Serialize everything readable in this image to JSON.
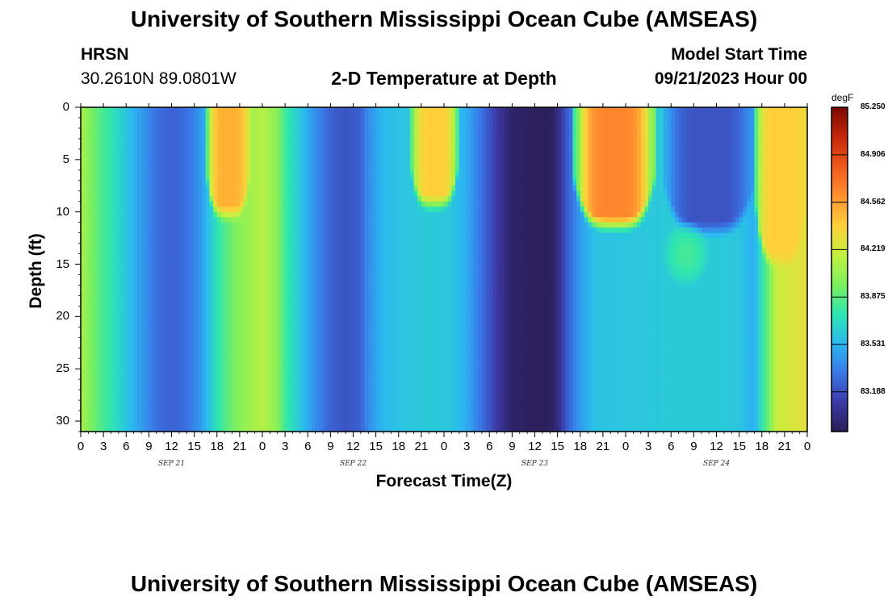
{
  "header": {
    "title": "University of Southern Mississippi Ocean Cube (AMSEAS)",
    "station": "HRSN",
    "coords": "30.2610N  89.0801W",
    "plot_title": "2-D Temperature at Depth",
    "model_label": "Model Start Time",
    "model_time": "09/21/2023 Hour 00"
  },
  "footer": {
    "title": "University of Southern Mississippi Ocean Cube (AMSEAS)"
  },
  "chart_data": {
    "type": "heatmap",
    "title": "2-D Temperature at Depth",
    "xlabel": "Forecast Time(Z)",
    "ylabel": "Depth (ft)",
    "x_range_hours": [
      0,
      96
    ],
    "x_tick_labels": [
      "0",
      "3",
      "6",
      "9",
      "12",
      "15",
      "18",
      "21",
      "0",
      "3",
      "6",
      "9",
      "12",
      "15",
      "18",
      "21",
      "0",
      "3",
      "6",
      "9",
      "12",
      "15",
      "18",
      "21",
      "0",
      "3",
      "6",
      "9",
      "12",
      "15",
      "18",
      "21",
      "0"
    ],
    "day_labels": [
      {
        "hour": 12,
        "label": "SEP 21"
      },
      {
        "hour": 36,
        "label": "SEP 22"
      },
      {
        "hour": 60,
        "label": "SEP 23"
      },
      {
        "hour": 84,
        "label": "SEP 24"
      }
    ],
    "ylim": [
      0,
      31
    ],
    "y_ticks": [
      0,
      5,
      10,
      15,
      20,
      25,
      30
    ],
    "colorbar": {
      "unit": "degF",
      "min": 82.9,
      "max": 85.25,
      "tick_labels": [
        "85.250",
        "84.906",
        "84.562",
        "84.219",
        "83.875",
        "83.531",
        "83.188"
      ],
      "colors": [
        "#2a1d55",
        "#3d3aa8",
        "#3a78e8",
        "#2bb9f0",
        "#2ee6b0",
        "#7df05c",
        "#c4f040",
        "#ffd03a",
        "#ff9030",
        "#ef5a1c",
        "#c4260a",
        "#7a0a03"
      ]
    },
    "bottom_profile_degF": [
      {
        "h": 0,
        "v": 84.1
      },
      {
        "h": 2,
        "v": 83.9
      },
      {
        "h": 4,
        "v": 83.75
      },
      {
        "h": 6,
        "v": 83.6
      },
      {
        "h": 8,
        "v": 83.45
      },
      {
        "h": 10,
        "v": 83.3
      },
      {
        "h": 12,
        "v": 83.25
      },
      {
        "h": 14,
        "v": 83.3
      },
      {
        "h": 16,
        "v": 83.45
      },
      {
        "h": 17,
        "v": 83.6
      },
      {
        "h": 19,
        "v": 83.85
      },
      {
        "h": 21,
        "v": 84.0
      },
      {
        "h": 23,
        "v": 84.1
      },
      {
        "h": 24,
        "v": 84.15
      },
      {
        "h": 26,
        "v": 84.0
      },
      {
        "h": 27,
        "v": 83.8
      },
      {
        "h": 29,
        "v": 83.6
      },
      {
        "h": 31,
        "v": 83.4
      },
      {
        "h": 33,
        "v": 83.25
      },
      {
        "h": 35,
        "v": 83.2
      },
      {
        "h": 37,
        "v": 83.25
      },
      {
        "h": 38,
        "v": 83.4
      },
      {
        "h": 40,
        "v": 83.55
      },
      {
        "h": 43,
        "v": 83.6
      },
      {
        "h": 46,
        "v": 83.62
      },
      {
        "h": 49,
        "v": 83.6
      },
      {
        "h": 51,
        "v": 83.5
      },
      {
        "h": 53,
        "v": 83.3
      },
      {
        "h": 55,
        "v": 83.1
      },
      {
        "h": 57,
        "v": 82.95
      },
      {
        "h": 60,
        "v": 82.92
      },
      {
        "h": 62,
        "v": 82.92
      },
      {
        "h": 63,
        "v": 83.0
      },
      {
        "h": 64,
        "v": 83.2
      },
      {
        "h": 66,
        "v": 83.45
      },
      {
        "h": 68,
        "v": 83.58
      },
      {
        "h": 72,
        "v": 83.6
      },
      {
        "h": 78,
        "v": 83.62
      },
      {
        "h": 84,
        "v": 83.62
      },
      {
        "h": 87,
        "v": 83.6
      },
      {
        "h": 89,
        "v": 83.5
      },
      {
        "h": 90,
        "v": 83.75
      },
      {
        "h": 91,
        "v": 83.95
      },
      {
        "h": 92,
        "v": 84.2
      },
      {
        "h": 96,
        "v": 84.3
      }
    ],
    "surface_warm_patches": [
      {
        "start_hour": 16.5,
        "end_hour": 22.5,
        "bottom_ft": 9.5,
        "peak_degF": 84.5
      },
      {
        "start_hour": 43.5,
        "end_hour": 50.0,
        "bottom_ft": 8.5,
        "peak_degF": 84.4
      },
      {
        "start_hour": 65.0,
        "end_hour": 76.0,
        "bottom_ft": 10.5,
        "peak_degF": 84.65
      },
      {
        "start_hour": 89.0,
        "end_hour": 96.0,
        "bottom_ft": 14.0,
        "peak_degF": 84.4
      }
    ],
    "surface_cool_patch": {
      "start_hour": 77.0,
      "end_hour": 89.0,
      "bottom_ft": 11.0,
      "min_degF": 83.2
    },
    "warm_bulge": {
      "center_hour": 80.0,
      "depth_ft": 14.0,
      "degF": 83.82
    }
  }
}
